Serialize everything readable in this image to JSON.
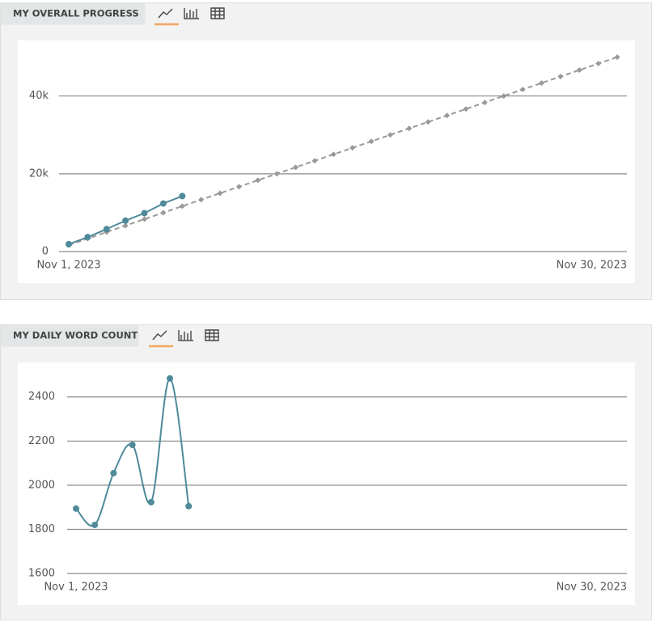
{
  "chart_data": [
    {
      "type": "line",
      "title": "MY OVERALL PROGRESS",
      "categories": [
        "Nov 1, 2023",
        null,
        null,
        null,
        null,
        null,
        null,
        null,
        null,
        null,
        null,
        null,
        null,
        null,
        null,
        null,
        null,
        null,
        null,
        null,
        null,
        null,
        null,
        null,
        null,
        null,
        null,
        null,
        null,
        "Nov 30, 2023"
      ],
      "series": [
        {
          "color": "#999999",
          "dashed": true,
          "marker": "diamond",
          "values": [
            1667,
            3333,
            5000,
            6667,
            8333,
            10000,
            11667,
            13333,
            15000,
            16667,
            18333,
            20000,
            21667,
            23333,
            25000,
            26667,
            28333,
            30000,
            31667,
            33333,
            35000,
            36667,
            38333,
            40000,
            41667,
            43333,
            45000,
            46667,
            48333,
            50000
          ]
        },
        {
          "color": "#4e8a9a",
          "dashed": false,
          "marker": "circle",
          "values": [
            1894,
            3714,
            5769,
            7952,
            9875,
            12359,
            14264,
            null,
            null,
            null,
            null,
            null,
            null,
            null,
            null,
            null,
            null,
            null,
            null,
            null,
            null,
            null,
            null,
            null,
            null,
            null,
            null,
            null,
            null,
            null
          ]
        }
      ],
      "ylim": [
        0,
        52000
      ],
      "yticks": [
        0,
        {
          "value": 20000,
          "label": "20k"
        },
        {
          "value": 40000,
          "label": "40k"
        }
      ],
      "grid": true,
      "smooth": false
    },
    {
      "type": "line",
      "title": "MY DAILY WORD COUNT",
      "categories": [
        "Nov 1, 2023",
        null,
        null,
        null,
        null,
        null,
        null,
        null,
        null,
        null,
        null,
        null,
        null,
        null,
        null,
        null,
        null,
        null,
        null,
        null,
        null,
        null,
        null,
        null,
        null,
        null,
        null,
        null,
        null,
        "Nov 30, 2023"
      ],
      "series": [
        {
          "color": "#4e8a9a",
          "dashed": false,
          "marker": "circle",
          "values": [
            1894,
            1820,
            2055,
            2183,
            1923,
            2484,
            1905,
            null,
            null,
            null,
            null,
            null,
            null,
            null,
            null,
            null,
            null,
            null,
            null,
            null,
            null,
            null,
            null,
            null,
            null,
            null,
            null,
            null,
            null,
            null
          ]
        }
      ],
      "ylim": [
        1600,
        2520
      ],
      "yticks": [
        1600,
        1800,
        2000,
        2200,
        2400
      ],
      "grid": true,
      "smooth": true
    }
  ]
}
